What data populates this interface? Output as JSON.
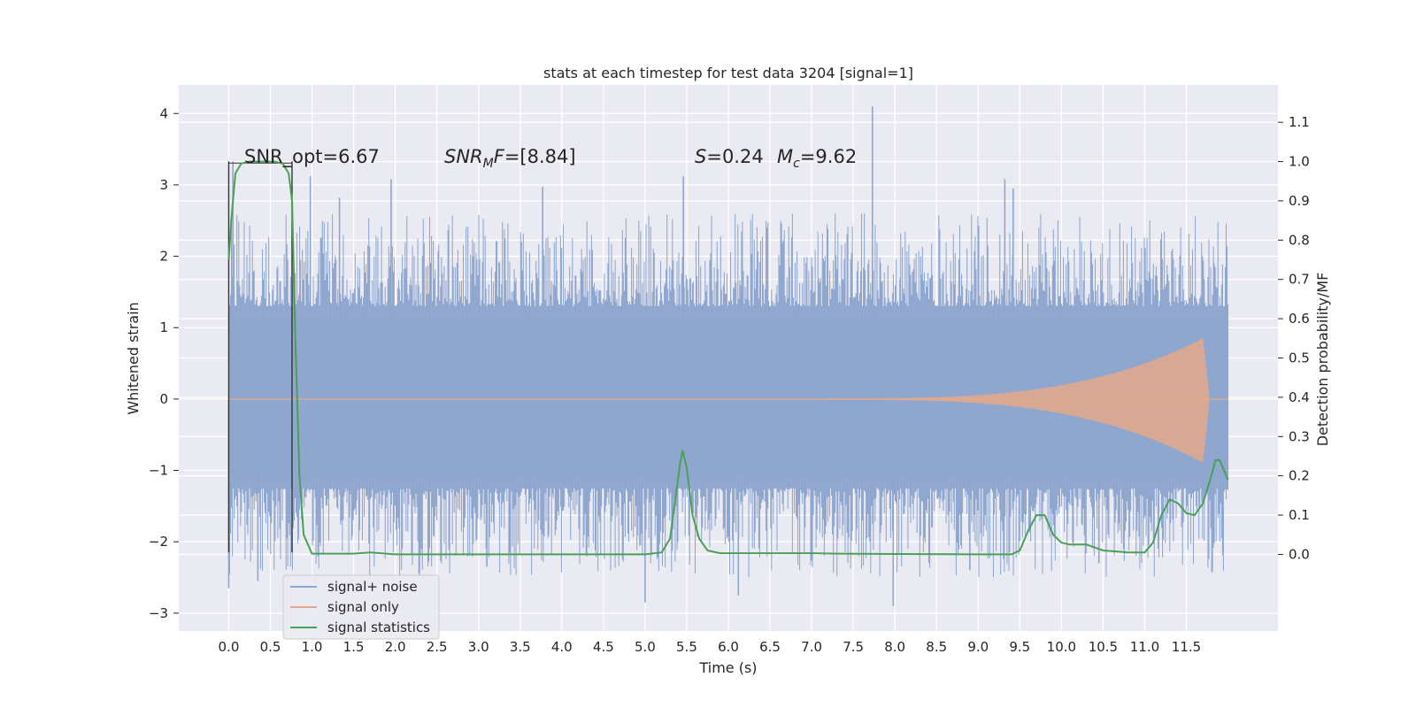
{
  "chart_data": {
    "type": "line",
    "title": "stats at each timestep for test data 3204 [signal=1]",
    "xlabel": "Time (s)",
    "ylabel": "Whitened strain",
    "y2label": "Detection probability/MF",
    "xlim": [
      -0.6,
      12.6
    ],
    "ylim": [
      -3.25,
      4.4
    ],
    "y2lim": [
      -0.195,
      1.195
    ],
    "x_ticks": [
      0.0,
      0.5,
      1.0,
      1.5,
      2.0,
      2.5,
      3.0,
      3.5,
      4.0,
      4.5,
      5.0,
      5.5,
      6.0,
      6.5,
      7.0,
      7.5,
      8.0,
      8.5,
      9.0,
      9.5,
      10.0,
      10.5,
      11.0,
      11.5
    ],
    "y_ticks": [
      -3,
      -2,
      -1,
      0,
      1,
      2,
      3,
      4
    ],
    "y2_ticks": [
      0.0,
      0.1,
      0.2,
      0.3,
      0.4,
      0.5,
      0.6,
      0.7,
      0.8,
      0.9,
      1.0,
      1.1
    ],
    "y_tick_labels": [
      "−3",
      "−2",
      "−1",
      "0",
      "1",
      "2",
      "3",
      "4"
    ],
    "grid": true,
    "legend_position": "lower-left",
    "annotations": {
      "snr_opt": {
        "prefix": "SNR_opt=",
        "value": "6.67"
      },
      "snr_mf": {
        "main": "SNR",
        "sub": "M",
        "tail": "F=",
        "value": "[8.84]"
      },
      "s": {
        "main": "S",
        "value": "=0.24"
      },
      "mc": {
        "main": "M",
        "sub": "c",
        "value": "=9.62"
      }
    },
    "window_markers": {
      "x": [
        0.0,
        0.76
      ],
      "y_range": [
        -2.15,
        3.33
      ]
    },
    "series": [
      {
        "name": "signal+ noise",
        "color": "#8fa6cf",
        "axis": "left",
        "duration": 12.0,
        "core_band": [
          -1.1,
          1.15
        ],
        "typical_envelope": [
          -2.0,
          2.1
        ],
        "spikes": [
          {
            "x": 7.73,
            "y": 4.1
          },
          {
            "x": 5.46,
            "y": 3.12
          },
          {
            "x": 0.98,
            "y": 3.12
          },
          {
            "x": 1.95,
            "y": 3.08
          },
          {
            "x": 9.32,
            "y": 3.08
          },
          {
            "x": 3.77,
            "y": 2.97
          },
          {
            "x": 1.33,
            "y": 2.82
          },
          {
            "x": 9.42,
            "y": 2.95
          },
          {
            "x": 0.05,
            "y": 3.33
          },
          {
            "x": 5.0,
            "y": -2.85
          },
          {
            "x": 7.98,
            "y": -2.9
          },
          {
            "x": 0.0,
            "y": -2.65
          },
          {
            "x": 0.35,
            "y": -2.55
          },
          {
            "x": 3.1,
            "y": -2.35
          },
          {
            "x": 6.12,
            "y": -2.75
          },
          {
            "x": 8.9,
            "y": -2.4
          },
          {
            "x": 10.45,
            "y": -2.3
          }
        ]
      },
      {
        "name": "signal only",
        "color": "#e4a98a",
        "axis": "left",
        "chirp_start": 7.2,
        "merger_time": 11.7,
        "peak_amplitude": 0.85,
        "end_time": 12.0
      },
      {
        "name": "signal statistics",
        "color": "#4c9f56",
        "axis": "right",
        "x": [
          0.0,
          0.03,
          0.08,
          0.15,
          0.25,
          0.4,
          0.55,
          0.65,
          0.72,
          0.76,
          0.8,
          0.85,
          0.9,
          1.0,
          1.5,
          1.7,
          2.0,
          3.0,
          4.0,
          5.0,
          5.2,
          5.3,
          5.35,
          5.42,
          5.45,
          5.5,
          5.57,
          5.65,
          5.75,
          5.9,
          6.2,
          7.0,
          7.3,
          8.0,
          9.0,
          9.4,
          9.5,
          9.6,
          9.7,
          9.8,
          9.9,
          10.0,
          10.1,
          10.3,
          10.5,
          10.8,
          11.0,
          11.1,
          11.2,
          11.3,
          11.4,
          11.5,
          11.6,
          11.7,
          11.8,
          11.85,
          11.9,
          12.0
        ],
        "values": [
          0.75,
          0.85,
          0.97,
          0.995,
          1.0,
          1.0,
          1.0,
          0.995,
          0.97,
          0.9,
          0.55,
          0.2,
          0.05,
          0.002,
          0.002,
          0.005,
          0.0,
          0.0,
          0.0,
          0.0,
          0.005,
          0.04,
          0.12,
          0.23,
          0.265,
          0.22,
          0.1,
          0.04,
          0.01,
          0.003,
          0.003,
          0.003,
          0.002,
          0.001,
          0.0,
          0.0,
          0.01,
          0.06,
          0.1,
          0.1,
          0.05,
          0.03,
          0.025,
          0.025,
          0.01,
          0.005,
          0.005,
          0.03,
          0.1,
          0.14,
          0.13,
          0.105,
          0.1,
          0.13,
          0.2,
          0.24,
          0.24,
          0.19
        ]
      }
    ]
  }
}
